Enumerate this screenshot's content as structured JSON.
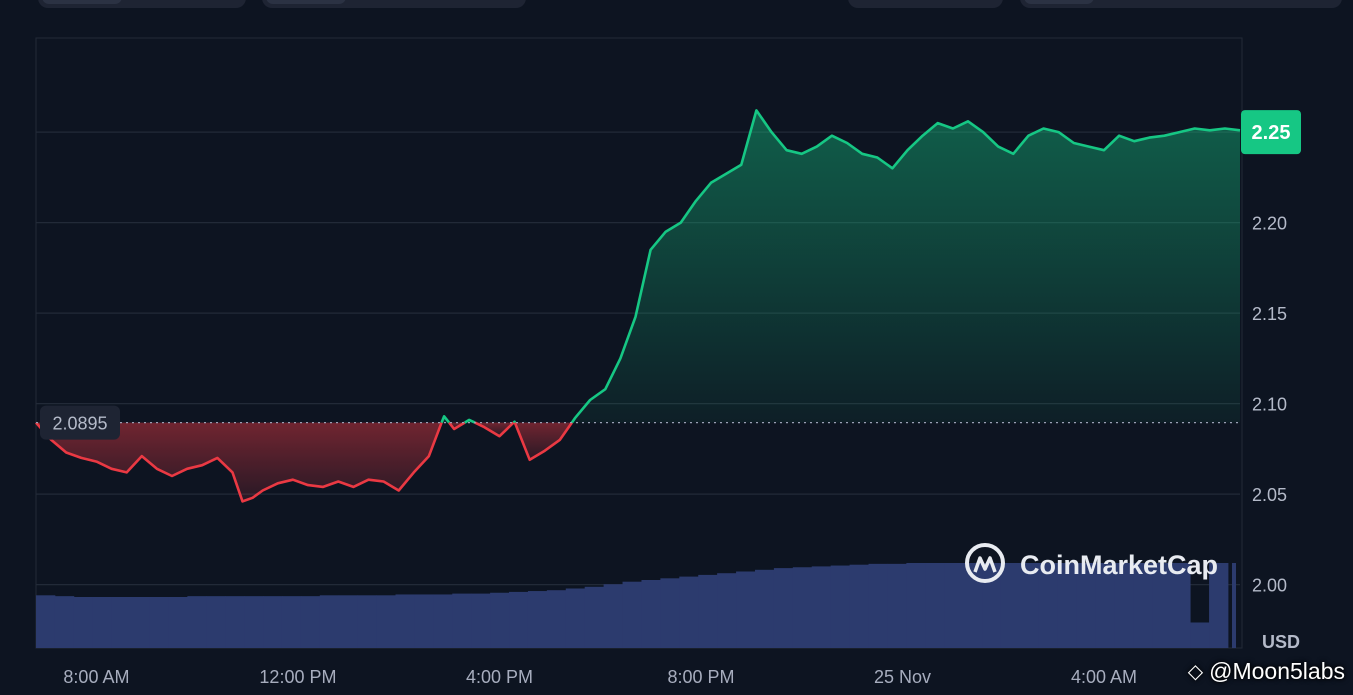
{
  "chart_data": {
    "type": "area",
    "currency": "USD",
    "reference_price": "2.0895",
    "reference_value": 2.0895,
    "current_price": "2.25",
    "current_value": 2.25,
    "ylim": [
      1.965,
      2.302
    ],
    "y_ticks": [
      {
        "value": 2.0,
        "label": "2.00"
      },
      {
        "value": 2.05,
        "label": "2.05"
      },
      {
        "value": 2.1,
        "label": "2.10"
      },
      {
        "value": 2.15,
        "label": "2.15"
      },
      {
        "value": 2.2,
        "label": "2.20"
      },
      {
        "value": 2.25,
        "label": "2.25"
      }
    ],
    "x_range_hours": [
      6.8,
      30.7
    ],
    "x_ticks": [
      {
        "hours": 8,
        "label": "8:00 AM"
      },
      {
        "hours": 12,
        "label": "12:00 PM"
      },
      {
        "hours": 16,
        "label": "4:00 PM"
      },
      {
        "hours": 20,
        "label": "8:00 PM"
      },
      {
        "hours": 24,
        "label": "25 Nov"
      },
      {
        "hours": 28,
        "label": "4:00 AM"
      }
    ],
    "series": [
      {
        "x": [
          6.8,
          7.1,
          7.4,
          7.7,
          8.0,
          8.3,
          8.6,
          8.9,
          9.2,
          9.5,
          9.8,
          10.1,
          10.4,
          10.7,
          10.9,
          11.1,
          11.3,
          11.6,
          11.9,
          12.2,
          12.5,
          12.8,
          13.1,
          13.4,
          13.7,
          14.0,
          14.3,
          14.6,
          14.9,
          15.1,
          15.4,
          15.7,
          16.0,
          16.3,
          16.6,
          16.9,
          17.2,
          17.5,
          17.8,
          18.1,
          18.4,
          18.7,
          19.0,
          19.3,
          19.6,
          19.9,
          20.2,
          20.5,
          20.8,
          21.1,
          21.4,
          21.7,
          22.0,
          22.3,
          22.6,
          22.9,
          23.2,
          23.5,
          23.8,
          24.1,
          24.4,
          24.7,
          25.0,
          25.3,
          25.6,
          25.9,
          26.2,
          26.5,
          26.8,
          27.1,
          27.4,
          27.7,
          28.0,
          28.3,
          28.6,
          28.9,
          29.2,
          29.5,
          29.8,
          30.1,
          30.4,
          30.7
        ],
        "y": [
          2.0895,
          2.08,
          2.073,
          2.07,
          2.068,
          2.064,
          2.062,
          2.071,
          2.064,
          2.06,
          2.064,
          2.066,
          2.07,
          2.062,
          2.046,
          2.048,
          2.052,
          2.056,
          2.058,
          2.055,
          2.054,
          2.057,
          2.054,
          2.058,
          2.057,
          2.052,
          2.062,
          2.071,
          2.093,
          2.086,
          2.091,
          2.087,
          2.082,
          2.09,
          2.069,
          2.074,
          2.08,
          2.092,
          2.102,
          2.108,
          2.125,
          2.148,
          2.185,
          2.195,
          2.2,
          2.212,
          2.222,
          2.227,
          2.232,
          2.262,
          2.25,
          2.24,
          2.238,
          2.242,
          2.248,
          2.244,
          2.238,
          2.236,
          2.23,
          2.24,
          2.248,
          2.255,
          2.252,
          2.256,
          2.25,
          2.242,
          2.238,
          2.248,
          2.252,
          2.25,
          2.244,
          2.242,
          2.24,
          2.248,
          2.245,
          2.247,
          2.248,
          2.25,
          2.252,
          2.251,
          2.252,
          2.251
        ]
      }
    ],
    "volume_bars": [
      0.62,
      0.61,
      0.6,
      0.6,
      0.6,
      0.6,
      0.6,
      0.6,
      0.61,
      0.61,
      0.61,
      0.61,
      0.61,
      0.61,
      0.61,
      0.62,
      0.62,
      0.62,
      0.62,
      0.63,
      0.63,
      0.63,
      0.64,
      0.64,
      0.65,
      0.66,
      0.67,
      0.68,
      0.7,
      0.72,
      0.75,
      0.78,
      0.8,
      0.82,
      0.84,
      0.86,
      0.88,
      0.9,
      0.92,
      0.94,
      0.95,
      0.96,
      0.97,
      0.98,
      0.99,
      0.99,
      1.0,
      1.0,
      1.0,
      1.0,
      1.0,
      1.0,
      1.0,
      1.0,
      1.0,
      1.0,
      1.0,
      1.0,
      1.0,
      1.0,
      1.0,
      0.3,
      1.0
    ],
    "up_color": "#16c784",
    "down_color": "#ea3943",
    "volume_color": "#2c3b6e",
    "grid": true,
    "watermark_brand": "CoinMarketCap"
  },
  "credit": {
    "handle": "@Moon5labs",
    "icon": "binance-diamond-icon"
  }
}
